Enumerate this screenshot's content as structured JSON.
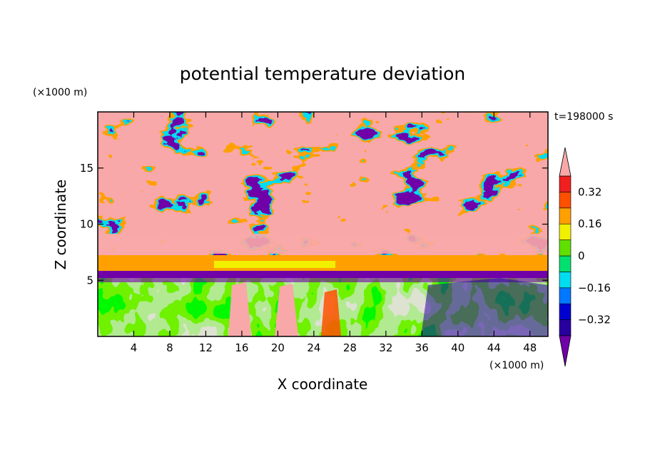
{
  "chart_data": {
    "type": "heatmap",
    "title": "potential temperature deviation",
    "time_label": "t=198000 s",
    "xlabel": "X coordinate",
    "ylabel": "Z coordinate",
    "x_unit": "(×1000 m)",
    "y_unit": "(×1000 m)",
    "xlim": [
      0,
      50
    ],
    "ylim": [
      0,
      20
    ],
    "x_ticks": [
      4,
      8,
      12,
      16,
      20,
      24,
      28,
      32,
      36,
      40,
      44,
      48
    ],
    "y_ticks": [
      5,
      10,
      15
    ],
    "colorbar": {
      "levels": [
        -0.4,
        -0.32,
        -0.24,
        -0.16,
        -0.08,
        0,
        0.08,
        0.16,
        0.24,
        0.32,
        0.4
      ],
      "tick_labels": [
        "0.32",
        "0.16",
        "0",
        "−0.16",
        "−0.32"
      ],
      "tick_values": [
        0.32,
        0.16,
        0,
        -0.16,
        -0.32
      ],
      "colors": [
        "#7000a8",
        "#2800a0",
        "#0000d0",
        "#0078ff",
        "#00dcf0",
        "#00e070",
        "#60e000",
        "#f0f000",
        "#ffa000",
        "#ff5000",
        "#f02020",
        "#f8a8a8"
      ],
      "extend": "both"
    },
    "fields": {
      "upper_layer": "mixed warm and cold cells with sharp filament fronts",
      "band_6_7km": "warm orange band near z = 6-7",
      "lower_layer": "near-neutral field with warm plumes around x = 12-24"
    }
  }
}
